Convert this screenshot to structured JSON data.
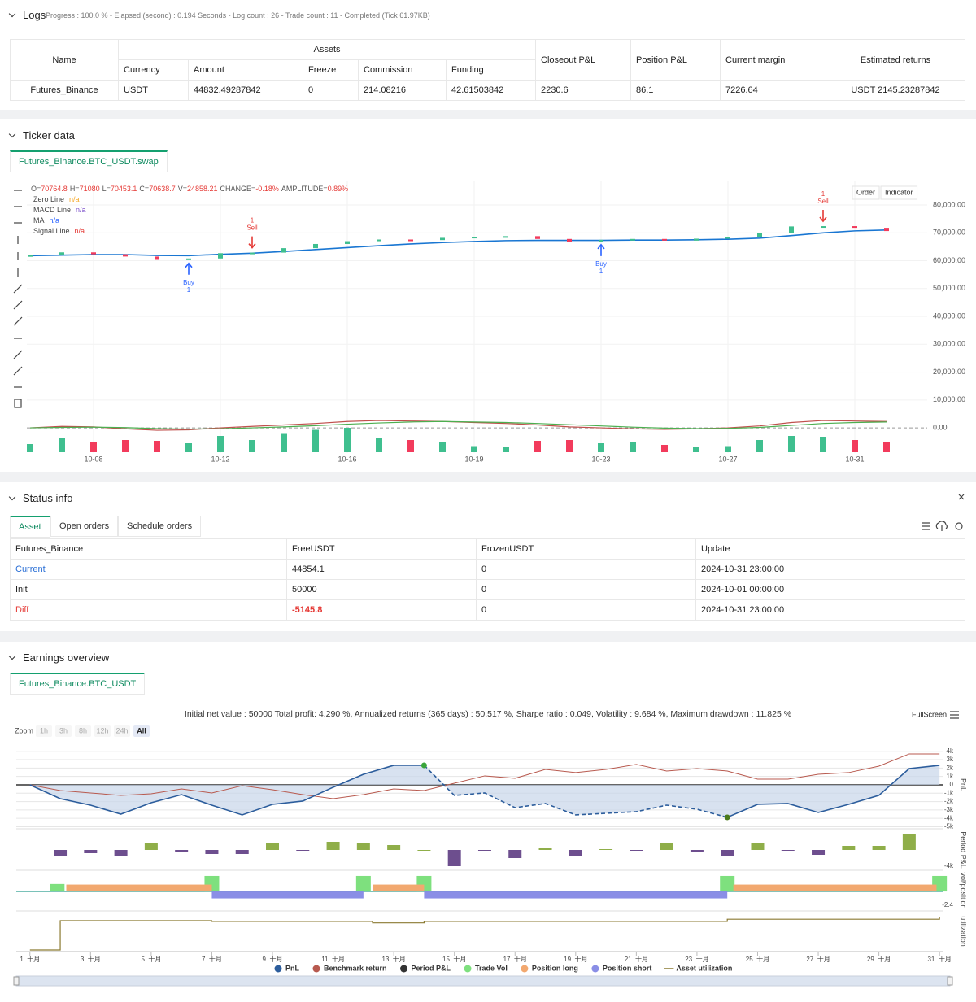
{
  "logs": {
    "title": "Logs",
    "status": "Progress : 100.0 % - Elapsed (second) : 0.194 Seconds - Log count : 26 - Trade count : 11 - Completed (Tick 61.97KB)",
    "table": {
      "group_header": "Assets",
      "headers": [
        "Name",
        "Currency",
        "Amount",
        "Freeze",
        "Commission",
        "Funding",
        "Closeout P&L",
        "Position P&L",
        "Current margin",
        "Estimated returns"
      ],
      "rows": [
        [
          "Futures_Binance",
          "USDT",
          "44832.49287842",
          "0",
          "214.08216",
          "42.61503842",
          "2230.6",
          "86.1",
          "7226.64",
          "USDT 2145.23287842"
        ]
      ]
    }
  },
  "ticker": {
    "title": "Ticker data",
    "tab": "Futures_Binance.BTC_USDT.swap",
    "buttons": [
      "Order",
      "Indicator"
    ]
  },
  "status": {
    "title": "Status info",
    "tabs": [
      "Asset",
      "Open orders",
      "Schedule orders"
    ],
    "table": {
      "headers": [
        "Futures_Binance",
        "FreeUSDT",
        "FrozenUSDT",
        "Update"
      ],
      "rows": [
        [
          "Current",
          "44854.1",
          "0",
          "2024-10-31 23:00:00"
        ],
        [
          "Init",
          "50000",
          "0",
          "2024-10-01 00:00:00"
        ],
        [
          "Diff",
          "-5145.8",
          "0",
          "2024-10-31 23:00:00"
        ]
      ]
    }
  },
  "earnings": {
    "title": "Earnings overview",
    "tab": "Futures_Binance.BTC_USDT"
  },
  "chart_data": [
    {
      "type": "candlestick",
      "header": [
        {
          "key": "O=",
          "value": "70764.8"
        },
        {
          "key": "H=",
          "value": "71080"
        },
        {
          "key": "L=",
          "value": "70453.1"
        },
        {
          "key": "C=",
          "value": "70638.7"
        },
        {
          "key": "V=",
          "value": "24858.21"
        },
        {
          "key": "CHANGE=",
          "value": "-0.18%"
        },
        {
          "key": "AMPLITUDE=",
          "value": "0.89%"
        }
      ],
      "legend": [
        {
          "name": "Zero Line",
          "value": "n/a",
          "color": "#f5a623"
        },
        {
          "name": "MACD Line",
          "value": "n/a",
          "color": "#7b4fc9"
        },
        {
          "name": "MA",
          "value": "n/a",
          "color": "#2962ff"
        },
        {
          "name": "Signal Line",
          "value": "n/a",
          "color": "#e53935"
        }
      ],
      "categories": [
        null,
        null,
        "10-08",
        null,
        null,
        null,
        "10-12",
        null,
        null,
        null,
        "10-16",
        null,
        null,
        null,
        "10-19",
        null,
        null,
        null,
        "10-23",
        null,
        null,
        null,
        "10-27",
        null,
        null,
        null,
        "10-31",
        null
      ],
      "close": [
        62000,
        63000,
        62300,
        61500,
        60300,
        60800,
        62700,
        62900,
        64500,
        66000,
        67000,
        67600,
        67400,
        68200,
        68600,
        68800,
        67800,
        66800,
        67500,
        67800,
        67200,
        67900,
        68500,
        69800,
        72300,
        72400,
        71800,
        70638.7
      ],
      "ma": [
        61800,
        62000,
        62200,
        62200,
        61900,
        61800,
        62300,
        62700,
        63300,
        64000,
        64700,
        65400,
        66000,
        66500,
        66900,
        67200,
        67300,
        67300,
        67300,
        67400,
        67400,
        67500,
        67700,
        68100,
        69000,
        70000,
        70700,
        71000
      ],
      "volume": [
        20000,
        35000,
        25000,
        30000,
        28000,
        22000,
        40000,
        30000,
        45000,
        55000,
        60000,
        35000,
        30000,
        25000,
        15000,
        12000,
        28000,
        30000,
        22000,
        25000,
        18000,
        12000,
        15000,
        30000,
        40000,
        38000,
        30000,
        24858.21
      ],
      "macd": [
        0,
        300,
        200,
        -200,
        -500,
        -400,
        0,
        300,
        600,
        900,
        1300,
        1500,
        1400,
        1300,
        1100,
        900,
        600,
        200,
        0,
        -200,
        -300,
        -200,
        0,
        400,
        1100,
        1500,
        1400,
        1300
      ],
      "signal": [
        0,
        100,
        150,
        50,
        -150,
        -250,
        -200,
        0,
        200,
        450,
        750,
        1000,
        1200,
        1300,
        1200,
        1100,
        900,
        650,
        400,
        150,
        -50,
        -150,
        -100,
        100,
        500,
        900,
        1100,
        1200
      ],
      "up_color": "#3fbf8f",
      "down_color": "#f23b5c",
      "ma_color": "#1976d2",
      "macd_color": "#c0504d",
      "signal_color": "#4caf50",
      "zero_color": "#999999",
      "ylim": [
        -9900,
        88760
      ],
      "yticks": [
        {
          "value": 0,
          "label": "0.00"
        },
        {
          "value": 10000,
          "label": "10,000.00"
        },
        {
          "value": 20000,
          "label": "20,000.00"
        },
        {
          "value": 30000,
          "label": "30,000.00"
        },
        {
          "value": 40000,
          "label": "40,000.00"
        },
        {
          "value": 50000,
          "label": "50,000.00"
        },
        {
          "value": 60000,
          "label": "60,000.00"
        },
        {
          "value": 70000,
          "label": "70,000.00"
        },
        {
          "value": 80000,
          "label": "80,000.00"
        }
      ],
      "annotations": [
        {
          "label": "Buy",
          "count": 1,
          "index": 5,
          "arrow": "up",
          "color": "#2962ff"
        },
        {
          "label": "Sell",
          "count": 1,
          "index": 7,
          "arrow": "down",
          "color": "#e53935"
        },
        {
          "label": "Buy",
          "count": 1,
          "index": 18,
          "arrow": "up",
          "color": "#2962ff"
        },
        {
          "label": "Sell",
          "count": 1,
          "index": 25,
          "arrow": "down",
          "color": "#e53935"
        }
      ]
    },
    {
      "type": "backtest",
      "summary": "Initial net value : 50000 Total profit: 4.290 %, Annualized returns (365 days) : 50.517 %, Sharpe ratio : 0.049, Volatility : 9.684 %, Maximum drawdown : 11.825 %",
      "zoom_label": "Zoom",
      "zoom_buttons": [
        "1h",
        "3h",
        "8h",
        "12h",
        "24h",
        "All"
      ],
      "zoom_active": 5,
      "fullscreen": "FullScreen",
      "x": [
        1,
        2,
        3,
        4,
        5,
        6,
        7,
        8,
        9,
        10,
        11,
        12,
        13,
        14,
        15,
        16,
        17,
        18,
        19,
        20,
        21,
        22,
        23,
        24,
        25,
        26,
        27,
        28,
        29,
        30,
        31
      ],
      "xlim": [
        0.55,
        31.13
      ],
      "xticks": [
        {
          "value": 1,
          "label": "1. 十月"
        },
        {
          "value": 3,
          "label": "3. 十月"
        },
        {
          "value": 5,
          "label": "5. 十月"
        },
        {
          "value": 7,
          "label": "7. 十月"
        },
        {
          "value": 9,
          "label": "9. 十月"
        },
        {
          "value": 11,
          "label": "11. 十月"
        },
        {
          "value": 13,
          "label": "13. 十月"
        },
        {
          "value": 15,
          "label": "15. 十月"
        },
        {
          "value": 17,
          "label": "17. 十月"
        },
        {
          "value": 19,
          "label": "19. 十月"
        },
        {
          "value": 21,
          "label": "21. 十月"
        },
        {
          "value": 23,
          "label": "23. 十月"
        },
        {
          "value": 25,
          "label": "25. 十月"
        },
        {
          "value": 27,
          "label": "27. 十月"
        },
        {
          "value": 29,
          "label": "29. 十月"
        },
        {
          "value": 31,
          "label": "31. 十月"
        }
      ],
      "pnl": {
        "name": "PnL",
        "color": "#2c5d9c",
        "area_color": "#c8d5ea",
        "values": [
          0,
          -1650,
          -2430,
          -3500,
          -2140,
          -1170,
          -2430,
          -3590,
          -2330,
          -1940,
          -290,
          1260,
          2330,
          2330,
          -1260,
          -970,
          -2720,
          -2230,
          -3590,
          -3400,
          -3200,
          -2430,
          -2910,
          -3880,
          -2330,
          -2230,
          -3300,
          -2330,
          -1260,
          1940,
          2330
        ],
        "ylim": [
          -5050,
          4850
        ],
        "yticks": [
          {
            "value": 4000,
            "label": "4k"
          },
          {
            "value": 3000,
            "label": "3k"
          },
          {
            "value": 2000,
            "label": "2k"
          },
          {
            "value": 1000,
            "label": "1k"
          },
          0,
          {
            "value": -1000,
            "label": "-1k"
          },
          {
            "value": -2000,
            "label": "-2k"
          },
          {
            "value": -3000,
            "label": "-3k"
          },
          {
            "value": -4000,
            "label": "-4k"
          },
          {
            "value": -5000,
            "label": "-5k"
          }
        ],
        "axis_label": "PnL"
      },
      "benchmark": {
        "name": "Benchmark return",
        "color": "#b85a4f",
        "values": [
          0,
          -680,
          -970,
          -1260,
          -1070,
          -490,
          -970,
          -100,
          -580,
          -1170,
          -1650,
          -1170,
          -490,
          -680,
          190,
          1070,
          780,
          1840,
          1460,
          1840,
          2430,
          1650,
          1940,
          1650,
          680,
          680,
          1260,
          1460,
          2230,
          3690,
          3690
        ]
      },
      "period_pnl": {
        "name": "Period P&L",
        "color": "#333333",
        "up_color": "#8fae49",
        "down_color": "#6d4e8e",
        "x": [
          2,
          3,
          4,
          5,
          6,
          7,
          8,
          9,
          10,
          11,
          12,
          13,
          14,
          15,
          16,
          17,
          18,
          19,
          20,
          21,
          22,
          23,
          24,
          25,
          26,
          27,
          28,
          29,
          30
        ],
        "values": [
          -1600,
          -800,
          -1400,
          1600,
          -400,
          -1000,
          -1000,
          1600,
          -200,
          2000,
          1600,
          1200,
          0,
          -4000,
          -200,
          -2000,
          400,
          -1400,
          200,
          -200,
          1600,
          -400,
          -1400,
          1800,
          -200,
          -1200,
          1000,
          1000,
          4000
        ],
        "ylim": [
          -4600,
          4600
        ],
        "yticks": [
          {
            "value": -4000,
            "label": "-4k"
          }
        ],
        "axis_label": "Period P&L"
      },
      "trade_vol": {
        "name": "Trade Vol",
        "color": "#7ee07e",
        "x": [
          1.9,
          7,
          12,
          14,
          24,
          31
        ],
        "values": [
          1.3,
          2.7,
          2.7,
          2.7,
          2.7,
          2.7
        ]
      },
      "position_long": {
        "name": "Position long",
        "color": "#f2a86f",
        "x_from": [
          2.2,
          12.3,
          24.2
        ],
        "x_to": [
          7,
          14,
          30.9
        ],
        "values": [
          1.2,
          1.2,
          1.2
        ]
      },
      "position_short": {
        "name": "Position short",
        "color": "#8a8ee6",
        "x_from": [
          7,
          14
        ],
        "x_to": [
          12,
          24
        ],
        "values": [
          -1.2,
          -1.2
        ]
      },
      "position_ylim": [
        -3.1,
        3.4
      ],
      "position_yticks": [
        -2.4
      ],
      "position_axis_label": "vol/position",
      "position_base_color": "#2a9d8f",
      "asset_utilization": {
        "name": "Asset utilization",
        "color": "#8b7a32",
        "x": [
          1,
          2,
          2,
          7,
          7,
          12.3,
          12.3,
          14,
          14,
          24,
          24,
          31,
          31
        ],
        "values": [
          0,
          0,
          0.8,
          0.8,
          0.78,
          0.78,
          0.74,
          0.74,
          0.78,
          0.78,
          0.84,
          0.84,
          0.9
        ],
        "ylim": [
          0,
          1
        ],
        "axis_label": "utilization"
      }
    }
  ]
}
